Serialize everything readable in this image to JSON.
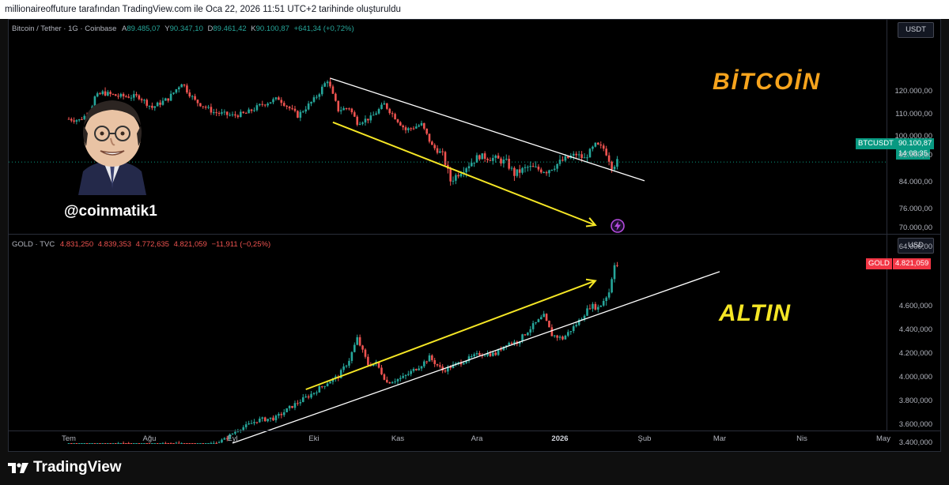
{
  "header": {
    "caption": "millionaireoffuture tarafından TradingView.com ile Oca 22, 2026 11:51 UTC+2 tarihinde oluşturuldu"
  },
  "btc_legend": {
    "symbol": "Bitcoin / Tether · 1G · Coinbase",
    "o_label": "A",
    "o": "89.485,07",
    "h_label": "Y",
    "h": "90.347,10",
    "l_label": "D",
    "l": "89.461,42",
    "c_label": "K",
    "c": "90.100,87",
    "change": "+641,34 (+0,72%)"
  },
  "gold_legend": {
    "symbol": "GOLD · TVC",
    "o": "4.831,250",
    "h": "4.839,353",
    "l": "4.772,635",
    "c": "4.821,059",
    "change": "−11,911 (−0,25%)"
  },
  "btc_currency": "USDT",
  "gold_currency": "USD",
  "btc_badge": {
    "ticker": "BTCUSDT",
    "price": "90.100,87",
    "countdown": "14:08:35"
  },
  "gold_badge": {
    "ticker": "GOLD",
    "price": "4.821,059"
  },
  "annotations": {
    "btc_title": "BİTCOİN",
    "gold_title": "ALTIN",
    "handle": "@coinmatik1"
  },
  "footer": {
    "brand": "TradingView"
  },
  "colors": {
    "up": "#26a69a",
    "down": "#ef5350",
    "btc_title": "#f7a41d",
    "gold_title": "#f5e625",
    "arrow": "#f5e625",
    "trendline": "#ffffff"
  },
  "icons": [
    "tradingview-logo-icon",
    "lightning-icon"
  ],
  "chart_data": [
    {
      "type": "candlestick",
      "symbol": "Bitcoin / Tether",
      "interval": "1G",
      "exchange": "Coinbase",
      "y_ticks": [
        "120.000,00",
        "110.000,00",
        "100.000,00",
        "92.000,00",
        "84.000,00",
        "76.000,00",
        "70.000,00",
        "64.000,00"
      ],
      "y_tick_values": [
        120000,
        110000,
        100000,
        92000,
        84000,
        76000,
        70000,
        64000
      ],
      "x_ticks": [
        "Tem",
        "Ağu",
        "Eyl",
        "Eki",
        "Kas",
        "Ara",
        "2026",
        "Şub",
        "Mar",
        "Nis",
        "May"
      ],
      "last_price": 90100.87,
      "close_path": [
        [
          "2025-07-01",
          108000
        ],
        [
          "2025-07-05",
          107500
        ],
        [
          "2025-07-09",
          111000
        ],
        [
          "2025-07-11",
          117500
        ],
        [
          "2025-07-14",
          119500
        ],
        [
          "2025-07-20",
          118000
        ],
        [
          "2025-07-28",
          117800
        ],
        [
          "2025-08-02",
          113000
        ],
        [
          "2025-08-08",
          117000
        ],
        [
          "2025-08-13",
          123500
        ],
        [
          "2025-08-18",
          116000
        ],
        [
          "2025-08-25",
          111000
        ],
        [
          "2025-09-01",
          109500
        ],
        [
          "2025-09-06",
          110500
        ],
        [
          "2025-09-12",
          114500
        ],
        [
          "2025-09-18",
          117000
        ],
        [
          "2025-09-25",
          109500
        ],
        [
          "2025-10-01",
          116500
        ],
        [
          "2025-10-06",
          124500
        ],
        [
          "2025-10-10",
          112000
        ],
        [
          "2025-10-14",
          113000
        ],
        [
          "2025-10-17",
          106500
        ],
        [
          "2025-10-22",
          108500
        ],
        [
          "2025-10-27",
          114500
        ],
        [
          "2025-11-04",
          103000
        ],
        [
          "2025-11-10",
          105500
        ],
        [
          "2025-11-14",
          96000
        ],
        [
          "2025-11-18",
          92500
        ],
        [
          "2025-11-21",
          84500
        ],
        [
          "2025-11-25",
          87500
        ],
        [
          "2025-12-02",
          92000
        ],
        [
          "2025-12-08",
          91000
        ],
        [
          "2025-12-12",
          90000
        ],
        [
          "2025-12-15",
          86500
        ],
        [
          "2025-12-20",
          88500
        ],
        [
          "2025-12-27",
          87500
        ],
        [
          "2026-01-02",
          90500
        ],
        [
          "2026-01-07",
          92500
        ],
        [
          "2026-01-10",
          91000
        ],
        [
          "2026-01-14",
          96500
        ],
        [
          "2026-01-17",
          95000
        ],
        [
          "2026-01-20",
          89000
        ],
        [
          "2026-01-22",
          90100
        ]
      ]
    },
    {
      "type": "candlestick",
      "symbol": "GOLD",
      "exchange": "TVC",
      "y_ticks": [
        "4.600,000",
        "4.400,000",
        "4.200,000",
        "4.000,000",
        "3.800,000",
        "3.600,000",
        "3.400,000"
      ],
      "y_tick_values": [
        4600,
        4400,
        4200,
        4000,
        3800,
        3600,
        3400
      ],
      "x_ticks": [
        "Tem",
        "Ağu",
        "Eyl",
        "Eki",
        "Kas",
        "Ara",
        "2026",
        "Şub",
        "Mar",
        "Nis",
        "May"
      ],
      "last_price": 4821.059,
      "close_path": [
        [
          "2025-07-01",
          3345
        ],
        [
          "2025-07-10",
          3325
        ],
        [
          "2025-07-22",
          3395
        ],
        [
          "2025-08-01",
          3350
        ],
        [
          "2025-08-08",
          3400
        ],
        [
          "2025-08-20",
          3340
        ],
        [
          "2025-08-29",
          3440
        ],
        [
          "2025-09-03",
          3550
        ],
        [
          "2025-09-10",
          3640
        ],
        [
          "2025-09-17",
          3660
        ],
        [
          "2025-09-23",
          3760
        ],
        [
          "2025-09-30",
          3860
        ],
        [
          "2025-10-06",
          3960
        ],
        [
          "2025-10-10",
          4010
        ],
        [
          "2025-10-14",
          4150
        ],
        [
          "2025-10-17",
          4330
        ],
        [
          "2025-10-21",
          4110
        ],
        [
          "2025-10-24",
          4120
        ],
        [
          "2025-10-28",
          3960
        ],
        [
          "2025-11-03",
          4000
        ],
        [
          "2025-11-10",
          4110
        ],
        [
          "2025-11-13",
          4170
        ],
        [
          "2025-11-18",
          4060
        ],
        [
          "2025-11-25",
          4130
        ],
        [
          "2025-12-02",
          4200
        ],
        [
          "2025-12-08",
          4200
        ],
        [
          "2025-12-12",
          4290
        ],
        [
          "2025-12-16",
          4300
        ],
        [
          "2025-12-22",
          4440
        ],
        [
          "2025-12-26",
          4520
        ],
        [
          "2025-12-29",
          4360
        ],
        [
          "2026-01-02",
          4330
        ],
        [
          "2026-01-07",
          4450
        ],
        [
          "2026-01-12",
          4600
        ],
        [
          "2026-01-15",
          4590
        ],
        [
          "2026-01-19",
          4680
        ],
        [
          "2026-01-21",
          4840
        ],
        [
          "2026-01-22",
          4821
        ]
      ]
    }
  ]
}
